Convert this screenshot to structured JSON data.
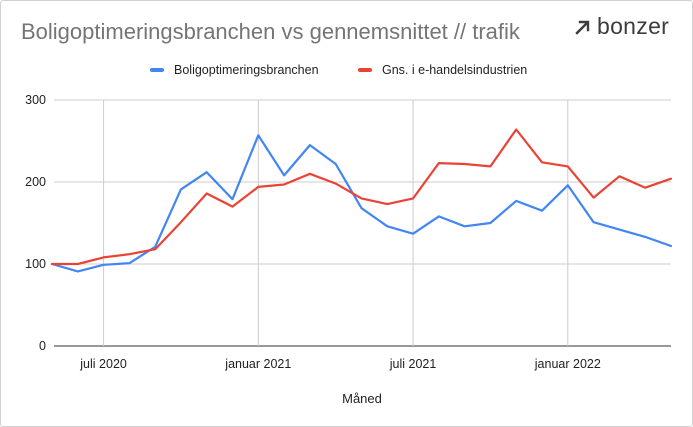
{
  "title": "Boligoptimeringsbranchen vs gennemsnittet // trafik",
  "logo": {
    "text": "bonzer",
    "icon": "bonzer-arrow-icon"
  },
  "chart_data": {
    "type": "line",
    "xlabel": "Måned",
    "ylabel": "",
    "ylim": [
      0,
      300
    ],
    "yticks": [
      0,
      100,
      200,
      300
    ],
    "x": [
      "2020-05",
      "2020-06",
      "2020-07",
      "2020-08",
      "2020-09",
      "2020-10",
      "2020-11",
      "2020-12",
      "2021-01",
      "2021-02",
      "2021-03",
      "2021-04",
      "2021-05",
      "2021-06",
      "2021-07",
      "2021-08",
      "2021-09",
      "2021-10",
      "2021-11",
      "2021-12",
      "2022-01",
      "2022-02",
      "2022-03",
      "2022-04",
      "2022-05"
    ],
    "xticks": [
      {
        "month": "2020-07",
        "label": "juli 2020"
      },
      {
        "month": "2021-01",
        "label": "januar 2021"
      },
      {
        "month": "2021-07",
        "label": "juli 2021"
      },
      {
        "month": "2022-01",
        "label": "januar 2022"
      }
    ],
    "grid": true,
    "legend_position": "top",
    "series": [
      {
        "name": "Boligoptimeringsbranchen",
        "color": "#4285f4",
        "values": [
          100,
          91,
          99,
          101,
          121,
          191,
          212,
          179,
          257,
          208,
          245,
          222,
          168,
          146,
          137,
          158,
          146,
          150,
          177,
          165,
          196,
          151,
          142,
          133,
          122
        ]
      },
      {
        "name": "Gns. i e-handelsindustrien",
        "color": "#ea4335",
        "values": [
          100,
          100,
          108,
          112,
          118,
          151,
          186,
          170,
          194,
          197,
          210,
          198,
          180,
          173,
          180,
          223,
          222,
          219,
          264,
          224,
          219,
          181,
          207,
          193,
          204
        ]
      }
    ]
  }
}
